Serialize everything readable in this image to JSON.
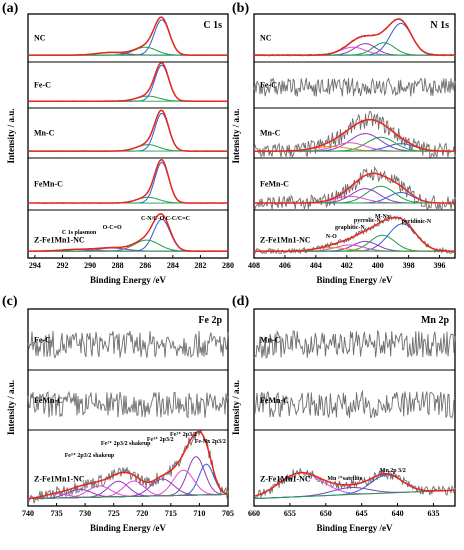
{
  "figure": {
    "colors": {
      "data_gray": "#6e6e6e",
      "envelope_red": "#e8261c",
      "component_blue": "#2c5fd6",
      "component_green": "#1e9e4a",
      "component_purple": "#8b3ab8",
      "component_magenta": "#e04ad6",
      "component_orange": "#e08a1e",
      "component_teal": "#1aa8a8",
      "background_green": "#1e9e4a",
      "frame": "#000000"
    }
  },
  "chart_data": [
    {
      "type": "line",
      "panel_label": "(a)",
      "element_label": "C 1s",
      "xlabel": "Binding Energy /eV",
      "ylabel": "Intensity / a.u.",
      "xlim": [
        294.5,
        280
      ],
      "xticks": [
        294,
        292,
        290,
        288,
        286,
        284,
        282,
        280
      ],
      "grid": false,
      "subpanels": [
        {
          "sample": "NC",
          "peaks": [
            284.8,
            286.0,
            288.5
          ]
        },
        {
          "sample": "Fe-C",
          "peaks": [
            284.8,
            285.8
          ]
        },
        {
          "sample": "Mn-C",
          "peaks": [
            284.8,
            285.8
          ]
        },
        {
          "sample": "FeMn-C",
          "peaks": [
            284.8,
            285.8
          ]
        },
        {
          "sample": "Z-Fe1Mn1-NC",
          "peaks": [
            284.8,
            285.9,
            288.4,
            290.8
          ]
        }
      ],
      "annotations": [
        {
          "text": "C 1s plasmon",
          "x": 290.8
        },
        {
          "text": "O-C=O",
          "x": 288.4
        },
        {
          "text": "C-N/C-O",
          "x": 285.9
        },
        {
          "text": "C-C/C=C",
          "x": 284.8
        }
      ]
    },
    {
      "type": "line",
      "panel_label": "(b)",
      "element_label": "N 1s",
      "xlabel": "Binding Energy /eV",
      "ylabel": "Intensity / a.u.",
      "xlim": [
        408,
        395
      ],
      "xticks": [
        408,
        406,
        404,
        402,
        400,
        398,
        396
      ],
      "grid": false,
      "subpanels": [
        {
          "sample": "NC",
          "peaks": [
            398.5,
            399.6,
            400.8,
            401.6
          ]
        },
        {
          "sample": "Fe-C",
          "peaks": []
        },
        {
          "sample": "Mn-C",
          "peaks": [
            398.5,
            399.8,
            400.8,
            401.8,
            403.0
          ]
        },
        {
          "sample": "FeMn-C",
          "peaks": [
            398.5,
            399.8,
            400.8,
            401.8
          ]
        },
        {
          "sample": "Z-Fe1Mn1-NC",
          "peaks": [
            398.4,
            399.7,
            400.8,
            401.8,
            403.0
          ]
        }
      ],
      "annotations": [
        {
          "text": "N-O",
          "x": 403.0
        },
        {
          "text": "graphitic-N",
          "x": 401.8
        },
        {
          "text": "pyrrolic-N",
          "x": 400.8
        },
        {
          "text": "M-Nx",
          "x": 399.7
        },
        {
          "text": "pyridinic-N",
          "x": 398.4
        }
      ]
    },
    {
      "type": "line",
      "panel_label": "(c)",
      "element_label": "Fe 2p",
      "xlabel": "Binding Energy /eV",
      "ylabel": "Intensity / a.u.",
      "xlim": [
        740,
        705
      ],
      "xticks": [
        740,
        735,
        730,
        725,
        720,
        715,
        710,
        705
      ],
      "grid": false,
      "subpanels": [
        {
          "sample": "Fe-C",
          "peaks": []
        },
        {
          "sample": "FeMn-C",
          "peaks": []
        },
        {
          "sample": "Z-Fe1Mn1-NC",
          "peaks": [
            708.8,
            710.6,
            712.8,
            716.5,
            721.5,
            724.2,
            727.5,
            731.0,
            735.0
          ]
        }
      ],
      "annotations": [
        {
          "text": "Fe³⁺ 2p3/2 shakeup",
          "x": 727.5
        },
        {
          "text": "Fe²⁺ 2p3/2 shakeup",
          "x": 721.5
        },
        {
          "text": "Fe³⁺ 2p3/2",
          "x": 716.5
        },
        {
          "text": "Fe²⁺ 2p3/2",
          "x": 712.8
        },
        {
          "text": "Fe-Nx 2p3/2",
          "x": 708.8
        }
      ]
    },
    {
      "type": "line",
      "panel_label": "(d)",
      "element_label": "Mn 2p",
      "xlabel": "Binding Energy /eV",
      "ylabel": "Intensity / a.u.",
      "xlim": [
        660,
        632
      ],
      "xticks": [
        660,
        655,
        650,
        645,
        640,
        635
      ],
      "grid": false,
      "subpanels": [
        {
          "sample": "Mn-C",
          "peaks": []
        },
        {
          "sample": "FeMn-C",
          "peaks": []
        },
        {
          "sample": "Z-Fe1Mn1-NC",
          "peaks": [
            653.5,
            646.5,
            641.5
          ]
        }
      ],
      "annotations": [
        {
          "text": "Mn ²⁺satellite",
          "x": 646.5
        },
        {
          "text": "Mn 2p 3/2",
          "x": 641.5
        }
      ]
    }
  ]
}
